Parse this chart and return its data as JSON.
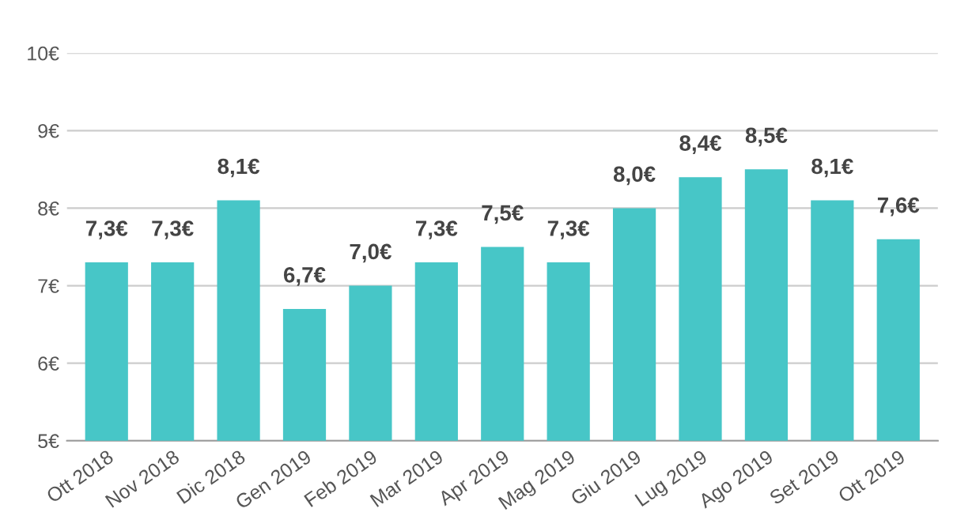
{
  "chart_data": {
    "type": "bar",
    "categories": [
      "Ott 2018",
      "Nov 2018",
      "Dic 2018",
      "Gen 2019",
      "Feb 2019",
      "Mar 2019",
      "Apr 2019",
      "Mag 2019",
      "Giu 2019",
      "Lug 2019",
      "Ago 2019",
      "Set 2019",
      "Ott 2019"
    ],
    "values": [
      7.3,
      7.3,
      8.1,
      6.7,
      7.0,
      7.3,
      7.5,
      7.3,
      8.0,
      8.4,
      8.5,
      8.1,
      7.6
    ],
    "value_labels": [
      "7,3€",
      "7,3€",
      "8,1€",
      "6,7€",
      "7,0€",
      "7,3€",
      "7,5€",
      "7,3€",
      "8,0€",
      "8,4€",
      "8,5€",
      "8,1€",
      "7,6€"
    ],
    "color": "#47c6c7",
    "ylim": [
      5,
      10
    ],
    "yticks": [
      {
        "value": 5,
        "label": "5€"
      },
      {
        "value": 6,
        "label": "6€"
      },
      {
        "value": 7,
        "label": "7€"
      },
      {
        "value": 8,
        "label": "8€"
      },
      {
        "value": 9,
        "label": "9€"
      },
      {
        "value": 10,
        "label": "10€"
      }
    ],
    "grid": "y",
    "legend": false
  }
}
